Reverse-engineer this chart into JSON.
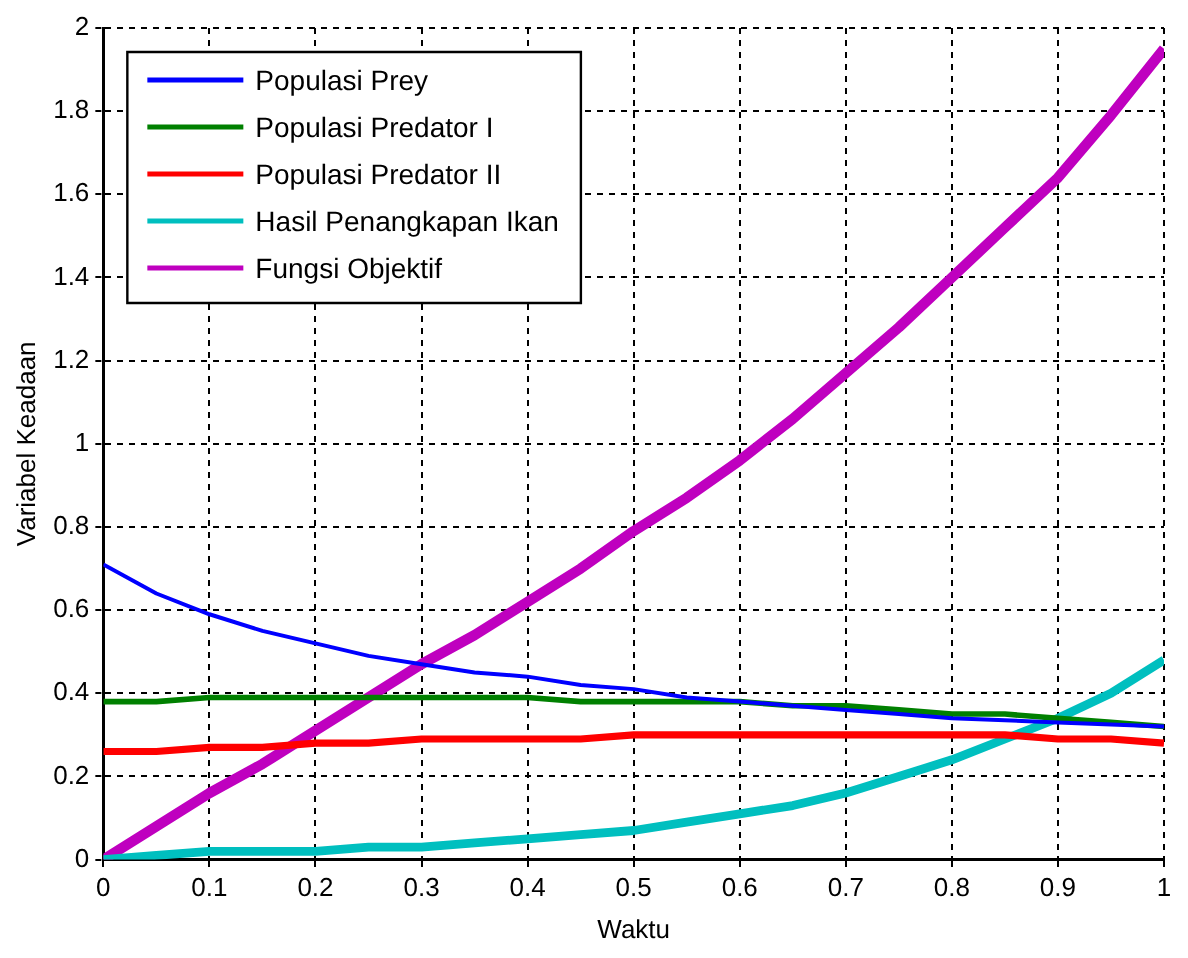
{
  "chart_data": {
    "type": "line",
    "xlabel": "Waktu",
    "ylabel": "Variabel Keadaan",
    "x": [
      0,
      0.05,
      0.1,
      0.15,
      0.2,
      0.25,
      0.3,
      0.35,
      0.4,
      0.45,
      0.5,
      0.55,
      0.6,
      0.65,
      0.7,
      0.75,
      0.8,
      0.85,
      0.9,
      0.95,
      1
    ],
    "series": [
      {
        "name": "Populasi Prey",
        "color": "#0000ff",
        "values": [
          0.71,
          0.64,
          0.59,
          0.55,
          0.52,
          0.49,
          0.47,
          0.45,
          0.44,
          0.42,
          0.41,
          0.39,
          0.38,
          0.37,
          0.36,
          0.35,
          0.34,
          0.335,
          0.33,
          0.325,
          0.32
        ]
      },
      {
        "name": "Populasi Predator I",
        "color": "#008000",
        "values": [
          0.38,
          0.38,
          0.39,
          0.39,
          0.39,
          0.39,
          0.39,
          0.39,
          0.39,
          0.38,
          0.38,
          0.38,
          0.38,
          0.37,
          0.37,
          0.36,
          0.35,
          0.35,
          0.34,
          0.33,
          0.32
        ]
      },
      {
        "name": "Populasi Predator II",
        "color": "#ff0000",
        "values": [
          0.26,
          0.26,
          0.27,
          0.27,
          0.28,
          0.28,
          0.29,
          0.29,
          0.29,
          0.29,
          0.3,
          0.3,
          0.3,
          0.3,
          0.3,
          0.3,
          0.3,
          0.3,
          0.29,
          0.29,
          0.28
        ]
      },
      {
        "name": "Hasil Penangkapan Ikan",
        "color": "#00bfbf",
        "values": [
          0,
          0.01,
          0.02,
          0.02,
          0.02,
          0.03,
          0.03,
          0.04,
          0.05,
          0.06,
          0.07,
          0.09,
          0.11,
          0.13,
          0.16,
          0.2,
          0.24,
          0.29,
          0.34,
          0.4,
          0.48
        ]
      },
      {
        "name": "Fungsi Objektif",
        "color": "#bf00bf",
        "values": [
          0,
          0.08,
          0.16,
          0.23,
          0.31,
          0.39,
          0.47,
          0.54,
          0.62,
          0.7,
          0.79,
          0.87,
          0.96,
          1.06,
          1.17,
          1.28,
          1.4,
          1.52,
          1.64,
          1.79,
          1.95
        ]
      }
    ],
    "xlim": [
      0,
      1
    ],
    "xticks": [
      0,
      0.1,
      0.2,
      0.3,
      0.4,
      0.5,
      0.6,
      0.7,
      0.8,
      0.9,
      1
    ],
    "ylim": [
      0,
      2
    ],
    "yticks": [
      0,
      0.2,
      0.4,
      0.6,
      0.8,
      1,
      1.2,
      1.4,
      1.6,
      1.8,
      2
    ],
    "grid": true,
    "legend": "top left",
    "line_style": "solid",
    "marker": "none"
  }
}
